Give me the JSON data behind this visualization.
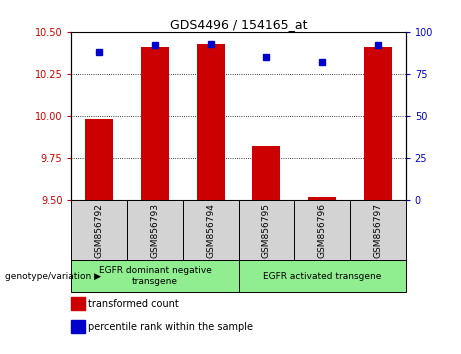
{
  "title": "GDS4496 / 154165_at",
  "samples": [
    "GSM856792",
    "GSM856793",
    "GSM856794",
    "GSM856795",
    "GSM856796",
    "GSM856797"
  ],
  "transformed_count": [
    9.98,
    10.41,
    10.43,
    9.82,
    9.52,
    10.41
  ],
  "percentile_rank": [
    88,
    92,
    93,
    85,
    82,
    92
  ],
  "ylim_left": [
    9.5,
    10.5
  ],
  "ylim_right": [
    0,
    100
  ],
  "yticks_left": [
    9.5,
    9.75,
    10.0,
    10.25,
    10.5
  ],
  "yticks_right": [
    0,
    25,
    50,
    75,
    100
  ],
  "bar_color": "#cc0000",
  "dot_color": "#0000cc",
  "groups": [
    {
      "label": "EGFR dominant negative\ntransgene",
      "indices": [
        0,
        1,
        2
      ],
      "color": "#90ee90"
    },
    {
      "label": "EGFR activated transgene",
      "indices": [
        3,
        4,
        5
      ],
      "color": "#90ee90"
    }
  ],
  "xlabel_group": "genotype/variation",
  "legend_transformed": "transformed count",
  "legend_percentile": "percentile rank within the sample",
  "bar_width": 0.5,
  "bar_bottom": 9.5
}
